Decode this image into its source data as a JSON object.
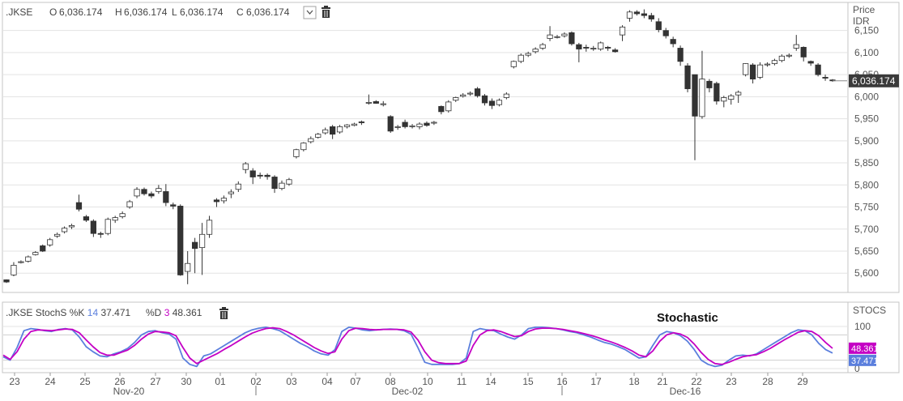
{
  "price_panel": {
    "symbol": ".JKSE",
    "ohlc": [
      {
        "key": "O",
        "value": "6,036.174"
      },
      {
        "key": "H",
        "value": "6,036.174"
      },
      {
        "key": "L",
        "value": "6,036.174"
      },
      {
        "key": "C",
        "value": "6,036.174"
      }
    ],
    "axis_title_1": "Price",
    "axis_title_2": "IDR",
    "last_price_label": "6,036.174",
    "collapse_icon": "chevron-down-icon",
    "delete_icon": "trash-icon"
  },
  "stoch_panel": {
    "symbol": ".JKSE",
    "indicator": "StochS",
    "k_label": "%K",
    "k_period": "14",
    "k_value": "37.471",
    "d_label": "%D",
    "d_period": "3",
    "d_value": "48.361",
    "annotation": "Stochastic",
    "axis_title": "STOCS",
    "delete_icon": "trash-icon",
    "k_color": "#5b7fdd",
    "d_color": "#c400c4"
  },
  "x_axis": {
    "day_labels": [
      "23",
      "24",
      "25",
      "26",
      "27",
      "30",
      "01",
      "02",
      "03",
      "04",
      "07",
      "08",
      "10",
      "11",
      "14",
      "15",
      "16",
      "17",
      "18",
      "21",
      "22",
      "23",
      "28",
      "29"
    ],
    "month_labels": [
      "Nov-20",
      "Dec-02",
      "Dec-16"
    ]
  },
  "chart_data": [
    {
      "type": "candlestick",
      "title": "",
      "ylabel": "Price IDR",
      "ylim": [
        5560,
        6210
      ],
      "yticks": [
        "5,600",
        "5,650",
        "5,700",
        "5,750",
        "5,800",
        "5,850",
        "5,900",
        "5,950",
        "6,000",
        "6,050",
        "6,100",
        "6,150"
      ],
      "ytick_values": [
        5600,
        5650,
        5700,
        5750,
        5800,
        5850,
        5900,
        5950,
        6000,
        6050,
        6100,
        6150
      ],
      "colors": {
        "up": "#ffffff",
        "down": "#333333",
        "outline": "#333333"
      },
      "candles": [
        [
          5585,
          5580,
          5586,
          5578
        ],
        [
          5596,
          5618,
          5625,
          5593
        ],
        [
          5624,
          5626,
          5629,
          5622
        ],
        [
          5627,
          5637,
          5640,
          5624
        ],
        [
          5642,
          5647,
          5650,
          5640
        ],
        [
          5662,
          5650,
          5665,
          5648
        ],
        [
          5664,
          5676,
          5680,
          5660
        ],
        [
          5684,
          5688,
          5692,
          5680
        ],
        [
          5694,
          5702,
          5706,
          5690
        ],
        [
          5705,
          5708,
          5712,
          5700
        ],
        [
          5760,
          5745,
          5778,
          5740
        ],
        [
          5728,
          5720,
          5732,
          5716
        ],
        [
          5718,
          5690,
          5722,
          5682
        ],
        [
          5690,
          5688,
          5694,
          5680
        ],
        [
          5690,
          5722,
          5726,
          5686
        ],
        [
          5720,
          5726,
          5730,
          5714
        ],
        [
          5728,
          5735,
          5740,
          5724
        ],
        [
          5750,
          5762,
          5766,
          5746
        ],
        [
          5775,
          5790,
          5795,
          5770
        ],
        [
          5790,
          5780,
          5794,
          5776
        ],
        [
          5780,
          5775,
          5785,
          5770
        ],
        [
          5785,
          5792,
          5800,
          5780
        ],
        [
          5785,
          5760,
          5802,
          5752
        ],
        [
          5755,
          5752,
          5760,
          5745
        ],
        [
          5752,
          5596,
          5756,
          5594
        ],
        [
          5604,
          5622,
          5650,
          5575
        ],
        [
          5670,
          5656,
          5680,
          5600
        ],
        [
          5658,
          5688,
          5714,
          5596
        ],
        [
          5688,
          5720,
          5730,
          5680
        ],
        [
          5766,
          5762,
          5770,
          5750
        ],
        [
          5764,
          5770,
          5776,
          5758
        ],
        [
          5780,
          5784,
          5790,
          5770
        ],
        [
          5790,
          5802,
          5808,
          5784
        ],
        [
          5835,
          5848,
          5852,
          5826
        ],
        [
          5832,
          5818,
          5838,
          5802
        ],
        [
          5822,
          5820,
          5828,
          5814
        ],
        [
          5822,
          5819,
          5826,
          5812
        ],
        [
          5818,
          5792,
          5822,
          5782
        ],
        [
          5792,
          5804,
          5810,
          5788
        ],
        [
          5802,
          5812,
          5816,
          5798
        ],
        [
          5864,
          5880,
          5882,
          5860
        ],
        [
          5880,
          5895,
          5897,
          5876
        ],
        [
          5898,
          5905,
          5910,
          5894
        ],
        [
          5908,
          5915,
          5918,
          5905
        ],
        [
          5918,
          5925,
          5930,
          5914
        ],
        [
          5932,
          5915,
          5936,
          5904
        ],
        [
          5920,
          5932,
          5936,
          5916
        ],
        [
          5932,
          5936,
          5938,
          5928
        ],
        [
          5935,
          5938,
          5941,
          5933
        ],
        [
          5943,
          5941,
          5946,
          5936
        ],
        [
          5986,
          5987,
          6005,
          5982
        ],
        [
          5989,
          5985,
          5992,
          5984
        ],
        [
          5982,
          5984,
          5990,
          5978
        ],
        [
          5955,
          5922,
          5958,
          5918
        ],
        [
          5930,
          5932,
          5936,
          5925
        ],
        [
          5942,
          5932,
          5948,
          5928
        ],
        [
          5932,
          5934,
          5938,
          5928
        ],
        [
          5932,
          5938,
          5942,
          5926
        ],
        [
          5940,
          5935,
          5944,
          5932
        ],
        [
          5940,
          5942,
          5945,
          5936
        ],
        [
          5978,
          5966,
          5980,
          5960
        ],
        [
          5968,
          5988,
          5992,
          5964
        ],
        [
          5992,
          5998,
          6000,
          5988
        ],
        [
          6001,
          6004,
          6008,
          5998
        ],
        [
          6006,
          6008,
          6012,
          6002
        ],
        [
          6018,
          6002,
          6022,
          5998
        ],
        [
          6002,
          5986,
          6006,
          5980
        ],
        [
          5990,
          5980,
          5996,
          5972
        ],
        [
          5982,
          5992,
          5996,
          5978
        ],
        [
          5998,
          6006,
          6010,
          5994
        ],
        [
          6068,
          6080,
          6082,
          6064
        ],
        [
          6080,
          6094,
          6098,
          6076
        ],
        [
          6094,
          6098,
          6102,
          6090
        ],
        [
          6102,
          6108,
          6112,
          6098
        ],
        [
          6110,
          6118,
          6122,
          6106
        ],
        [
          6132,
          6140,
          6160,
          6126
        ],
        [
          6136,
          6136,
          6140,
          6132
        ],
        [
          6138,
          6142,
          6146,
          6134
        ],
        [
          6145,
          6120,
          6148,
          6116
        ],
        [
          6118,
          6108,
          6122,
          6078
        ],
        [
          6112,
          6110,
          6118,
          6102
        ],
        [
          6110,
          6110,
          6115,
          6104
        ],
        [
          6108,
          6122,
          6125,
          6104
        ],
        [
          6112,
          6110,
          6115,
          6104
        ],
        [
          6106,
          6102,
          6110,
          6100
        ],
        [
          6140,
          6158,
          6162,
          6126
        ],
        [
          6178,
          6192,
          6196,
          6170
        ],
        [
          6192,
          6188,
          6196,
          6184
        ],
        [
          6188,
          6184,
          6198,
          6178
        ],
        [
          6184,
          6176,
          6190,
          6170
        ],
        [
          6170,
          6152,
          6178,
          6146
        ],
        [
          6150,
          6138,
          6156,
          6132
        ],
        [
          6130,
          6120,
          6136,
          6112
        ],
        [
          6110,
          6080,
          6116,
          6070
        ],
        [
          6070,
          6018,
          6076,
          6010
        ],
        [
          6050,
          5956,
          6050,
          5856
        ],
        [
          5955,
          6040,
          6104,
          5950
        ],
        [
          6035,
          6020,
          6040,
          6010
        ],
        [
          6030,
          5990,
          6034,
          5982
        ],
        [
          5990,
          5998,
          6002,
          5976
        ],
        [
          5994,
          6002,
          6006,
          5982
        ],
        [
          6004,
          6010,
          6014,
          5986
        ],
        [
          6050,
          6075,
          6076,
          6046
        ],
        [
          6072,
          6040,
          6076,
          6030
        ],
        [
          6044,
          6072,
          6078,
          6040
        ],
        [
          6072,
          6074,
          6078,
          6068
        ],
        [
          6075,
          6082,
          6086,
          6071
        ],
        [
          6082,
          6092,
          6096,
          6078
        ],
        [
          6092,
          6094,
          6098,
          6088
        ],
        [
          6110,
          6118,
          6140,
          6104
        ],
        [
          6112,
          6090,
          6114,
          6080
        ],
        [
          6080,
          6076,
          6082,
          6070
        ],
        [
          6072,
          6050,
          6076,
          6046
        ],
        [
          6044,
          6042,
          6050,
          6036
        ],
        [
          6038,
          6036,
          6040,
          6034
        ]
      ]
    },
    {
      "type": "line",
      "title": "",
      "ylabel": "STOCS",
      "ylim": [
        0,
        100
      ],
      "yticks": [
        "0",
        "50",
        "100"
      ],
      "ytick_values": [
        0,
        50,
        100
      ],
      "series": [
        {
          "name": "%K",
          "color": "#5b7fdd",
          "values": [
            28,
            20,
            50,
            90,
            95,
            93,
            90,
            88,
            93,
            95,
            92,
            75,
            52,
            40,
            30,
            28,
            35,
            40,
            48,
            62,
            80,
            88,
            90,
            85,
            82,
            70,
            25,
            10,
            5,
            30,
            35,
            45,
            55,
            65,
            75,
            85,
            92,
            96,
            98,
            95,
            90,
            80,
            70,
            60,
            52,
            42,
            35,
            32,
            45,
            88,
            98,
            96,
            92,
            90,
            92,
            93,
            94,
            93,
            90,
            82,
            50,
            15,
            10,
            10,
            10,
            10,
            12,
            25,
            88,
            95,
            92,
            90,
            82,
            75,
            70,
            80,
            95,
            98,
            98,
            97,
            95,
            92,
            88,
            85,
            80,
            75,
            68,
            62,
            58,
            52,
            45,
            35,
            25,
            28,
            55,
            80,
            88,
            85,
            78,
            65,
            45,
            20,
            10,
            5,
            8,
            20,
            30,
            32,
            30,
            35,
            45,
            55,
            65,
            75,
            85,
            92,
            90,
            80,
            60,
            45,
            37
          ]
        },
        {
          "name": "%D",
          "color": "#c400c4",
          "values": [
            32,
            22,
            40,
            70,
            88,
            92,
            91,
            90,
            92,
            94,
            93,
            85,
            68,
            52,
            38,
            32,
            32,
            38,
            44,
            55,
            70,
            82,
            88,
            87,
            85,
            78,
            50,
            25,
            12,
            20,
            28,
            36,
            46,
            55,
            65,
            75,
            84,
            90,
            95,
            97,
            95,
            88,
            80,
            70,
            60,
            50,
            42,
            36,
            40,
            70,
            90,
            96,
            95,
            93,
            92,
            93,
            93,
            93,
            92,
            87,
            68,
            40,
            20,
            14,
            12,
            12,
            12,
            18,
            55,
            80,
            90,
            92,
            88,
            82,
            76,
            78,
            88,
            94,
            96,
            96,
            95,
            93,
            90,
            87,
            83,
            79,
            74,
            68,
            63,
            57,
            50,
            42,
            32,
            28,
            42,
            65,
            80,
            85,
            82,
            74,
            58,
            38,
            22,
            12,
            10,
            15,
            22,
            28,
            31,
            33,
            40,
            48,
            58,
            68,
            77,
            86,
            90,
            88,
            78,
            62,
            48
          ]
        }
      ]
    }
  ]
}
